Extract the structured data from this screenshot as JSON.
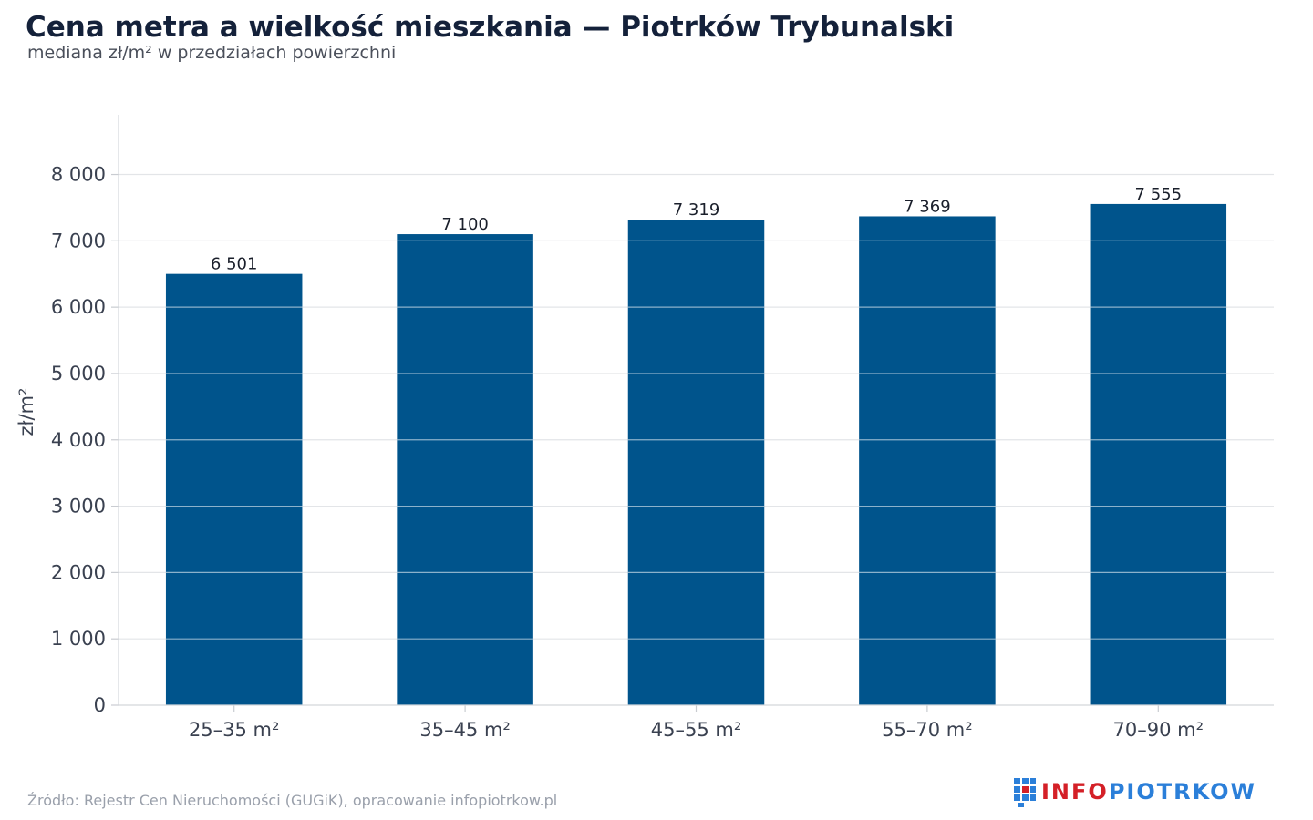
{
  "header": {
    "title": "Cena metra a wielkość mieszkania — Piotrków Trybunalski",
    "subtitle": "mediana zł/m² w przedziałach powierzchni"
  },
  "chart_data": {
    "type": "bar",
    "categories": [
      "25–35 m²",
      "35–45 m²",
      "45–55 m²",
      "55–70 m²",
      "70–90 m²"
    ],
    "values": [
      6501,
      7100,
      7319,
      7369,
      7555
    ],
    "value_labels": [
      "6 501",
      "7 100",
      "7 319",
      "7 369",
      "7 555"
    ],
    "ylabel": "zł/m²",
    "ylim": [
      0,
      8900
    ],
    "yticks": [
      0,
      1000,
      2000,
      3000,
      4000,
      5000,
      6000,
      7000,
      8000
    ],
    "ytick_labels": [
      "0",
      "1 000",
      "2 000",
      "3 000",
      "4 000",
      "5 000",
      "6 000",
      "7 000",
      "8 000"
    ],
    "grid": true,
    "bar_color": "#00548c"
  },
  "footer": {
    "source": "Źródło: Rejestr Cen Nieruchomości (GUGiK), opracowanie infopiotrkow.pl",
    "logo_part1": "INFO",
    "logo_part2": "PIOTRKOW"
  },
  "colors": {
    "logo_red": "#d42027",
    "logo_blue": "#2b7fd9"
  }
}
